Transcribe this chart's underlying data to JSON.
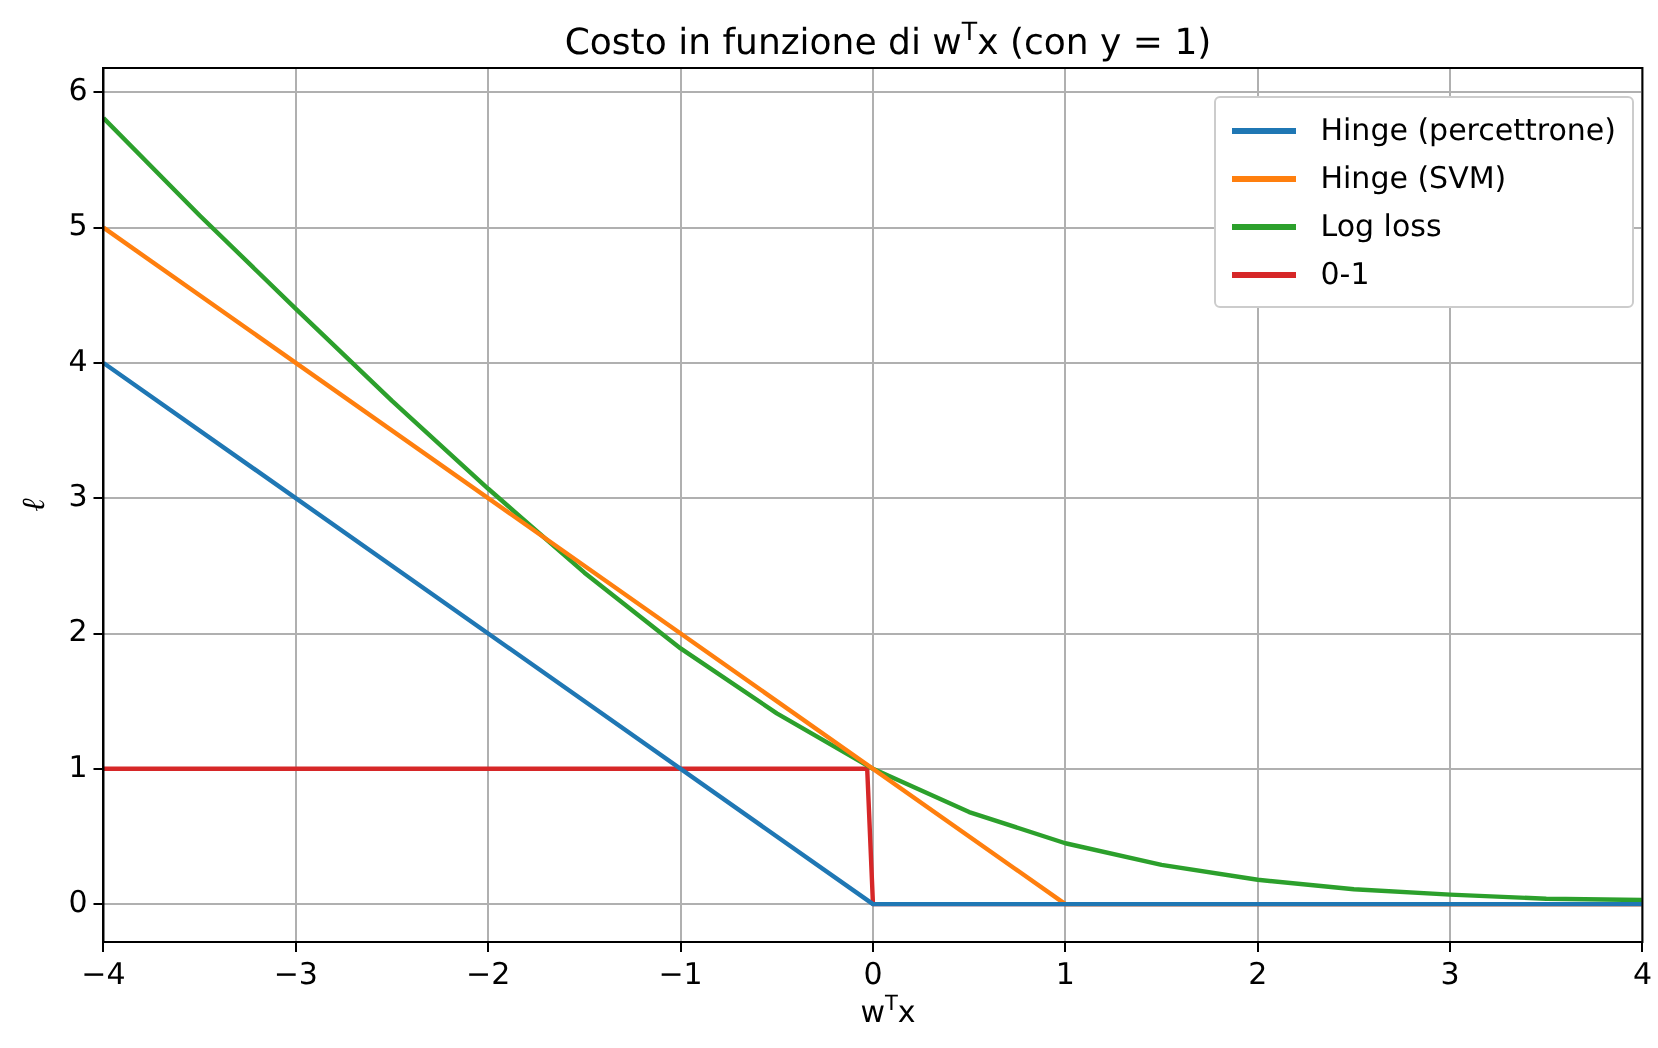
{
  "chart_data": {
    "type": "line",
    "title": "Costo in funzione di w$^{T}$x (con y = 1)",
    "xlabel": "w$^{T}$x",
    "ylabel": "ℓ",
    "xlim": [
      -4,
      4
    ],
    "xticks": [
      -4,
      -3,
      -2,
      -1,
      0,
      1,
      2,
      3,
      4
    ],
    "ylim": [
      -0.28,
      6.18
    ],
    "yticks": [
      0,
      1,
      2,
      3,
      4,
      5,
      6
    ],
    "grid": true,
    "legend": "top right",
    "marker": "none",
    "line_style": "solid",
    "series": [
      {
        "name": "Hinge (percettrone)",
        "color": "#1f77b4",
        "x": [
          -4,
          0,
          4
        ],
        "values": [
          4,
          0,
          0
        ]
      },
      {
        "name": "Hinge (SVM)",
        "color": "#ff7f0e",
        "x": [
          -4,
          1,
          4
        ],
        "values": [
          5,
          0,
          0
        ]
      },
      {
        "name": "Log loss",
        "color": "#2ca02c",
        "x": [
          -4,
          -3.5,
          -3,
          -2.5,
          -2,
          -1.5,
          -1,
          -0.5,
          0,
          0.5,
          1,
          1.5,
          2,
          2.5,
          3,
          3.5,
          4
        ],
        "values": [
          5.81,
          5.09,
          4.4,
          3.72,
          3.07,
          2.45,
          1.89,
          1.41,
          1,
          0.68,
          0.45,
          0.29,
          0.18,
          0.11,
          0.07,
          0.04,
          0.03
        ]
      },
      {
        "name": "0-1",
        "color": "#d62728",
        "x": [
          -4,
          -0.03,
          0,
          4
        ],
        "values": [
          1,
          1,
          0,
          0
        ]
      }
    ]
  }
}
